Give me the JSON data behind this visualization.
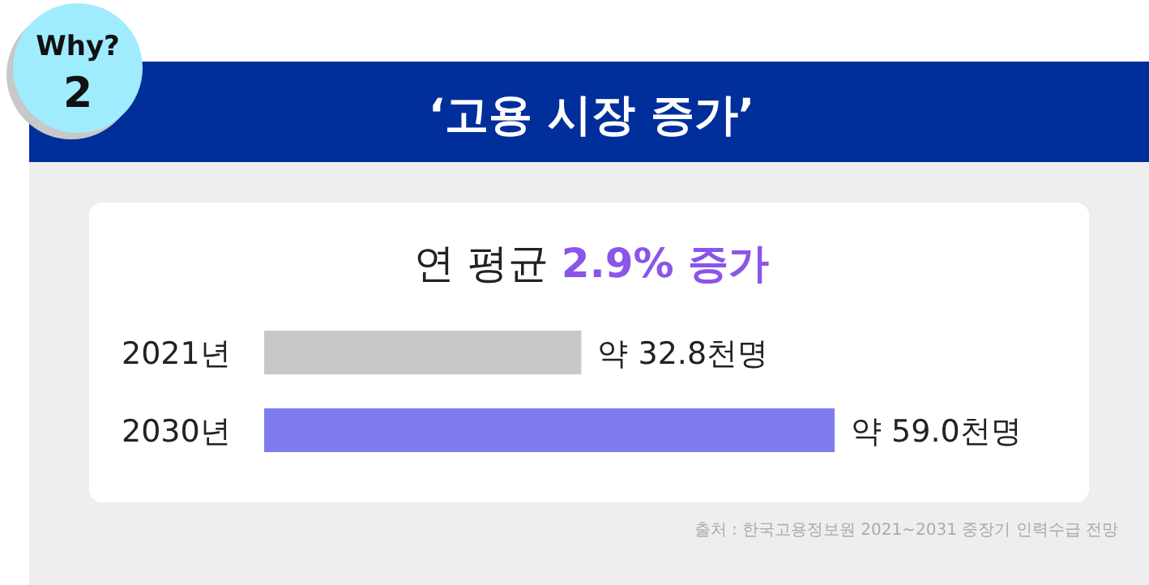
{
  "chart_data": {
    "type": "bar",
    "orientation": "horizontal",
    "title": "‘고용 시장 증가’",
    "subtitle": "연 평균 **2.9% 증가**",
    "categories": [
      "2021년",
      "2030년"
    ],
    "values": [
      32.8,
      59.0
    ],
    "colors": [
      "#c8c8c8",
      "#7f7cf0"
    ],
    "value_labels": [
      "약 32.8천명",
      "약 59.0천명"
    ],
    "annotations": [
      "Why?",
      "2",
      "출처 : 한국고용정보원 2021~2031 중장기 인력수급 전망"
    ]
  }
}
